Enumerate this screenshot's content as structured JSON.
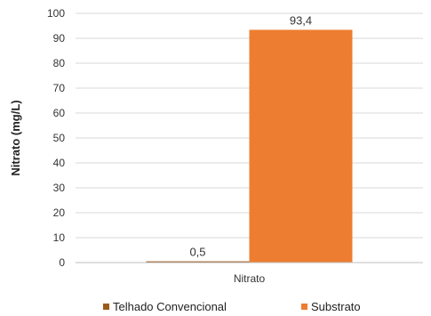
{
  "chart_data": {
    "type": "bar",
    "categories": [
      "Nitrato"
    ],
    "series": [
      {
        "name": "Telhado Convencional",
        "values": [
          0.5
        ],
        "labels": [
          "0,5"
        ],
        "color": "#9b5a1c"
      },
      {
        "name": "Substrato",
        "values": [
          93.4
        ],
        "labels": [
          "93,4"
        ],
        "color": "#ed7d31"
      }
    ],
    "title": "",
    "xlabel": "",
    "ylabel": "Nitrato (mg/L)",
    "ylim": [
      0,
      100
    ],
    "yticks": [
      0,
      10,
      20,
      30,
      40,
      50,
      60,
      70,
      80,
      90,
      100
    ],
    "grid": true,
    "legend": "bottom"
  }
}
